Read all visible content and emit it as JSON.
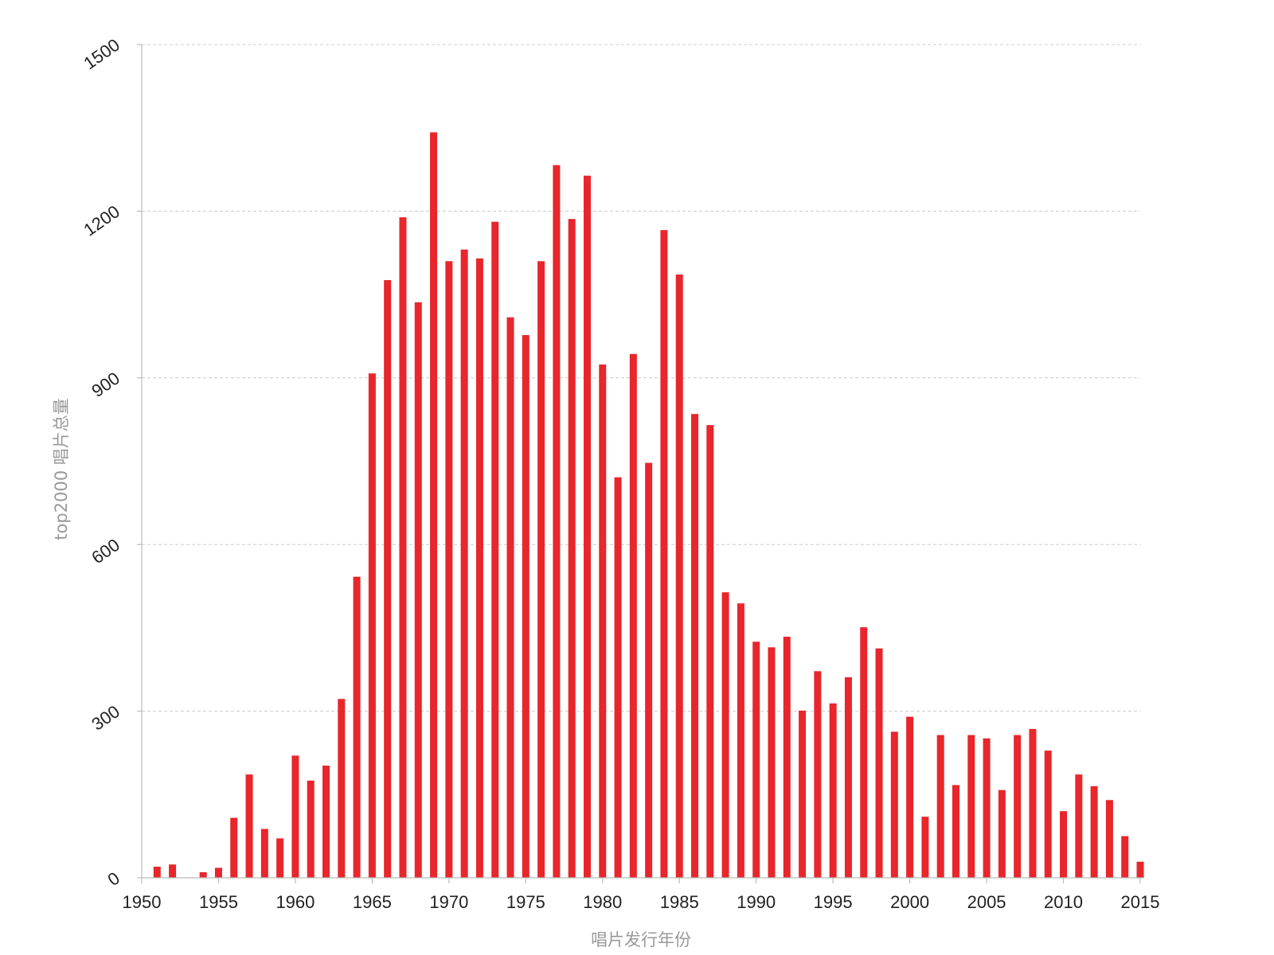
{
  "colors": {
    "bar": "#e8262b",
    "grid": "#cccccc",
    "axis": "#bbbbbb",
    "tick_text": "#222222",
    "axis_title": "#999999"
  },
  "chart_data": {
    "type": "bar",
    "title": "",
    "xlabel": "唱片发行年份",
    "ylabel": "top2000 唱片总量",
    "xlim": [
      1950,
      2015
    ],
    "ylim": [
      0,
      1500
    ],
    "x_ticks": [
      "1950",
      "1955",
      "1960",
      "1965",
      "1970",
      "1975",
      "1980",
      "1985",
      "1990",
      "1995",
      "2000",
      "2005",
      "2010",
      "2015"
    ],
    "y_ticks": [
      "0",
      "300",
      "600",
      "900",
      "1200",
      "1500"
    ],
    "grid": "horizontal dashed",
    "legend": "none",
    "x": [
      1951,
      1952,
      1954,
      1955,
      1956,
      1957,
      1958,
      1959,
      1960,
      1961,
      1962,
      1963,
      1964,
      1965,
      1966,
      1967,
      1968,
      1969,
      1970,
      1971,
      1972,
      1973,
      1974,
      1975,
      1976,
      1977,
      1978,
      1979,
      1980,
      1981,
      1982,
      1983,
      1984,
      1985,
      1986,
      1987,
      1988,
      1989,
      1990,
      1991,
      1992,
      1993,
      1994,
      1995,
      1996,
      1997,
      1998,
      1999,
      2000,
      2001,
      2002,
      2003,
      2004,
      2005,
      2006,
      2007,
      2008,
      2009,
      2010,
      2011,
      2012,
      2013,
      2014,
      2015
    ],
    "values": [
      20,
      24,
      10,
      18,
      108,
      186,
      88,
      71,
      220,
      175,
      202,
      322,
      542,
      908,
      1076,
      1189,
      1036,
      1342,
      1110,
      1131,
      1115,
      1181,
      1009,
      977,
      1110,
      1283,
      1186,
      1264,
      924,
      721,
      943,
      747,
      1166,
      1086,
      835,
      815,
      514,
      494,
      425,
      415,
      434,
      301,
      372,
      314,
      361,
      451,
      413,
      263,
      290,
      110,
      257,
      167,
      257,
      251,
      158,
      257,
      268,
      229,
      120,
      186,
      165,
      140,
      75,
      29
    ]
  }
}
